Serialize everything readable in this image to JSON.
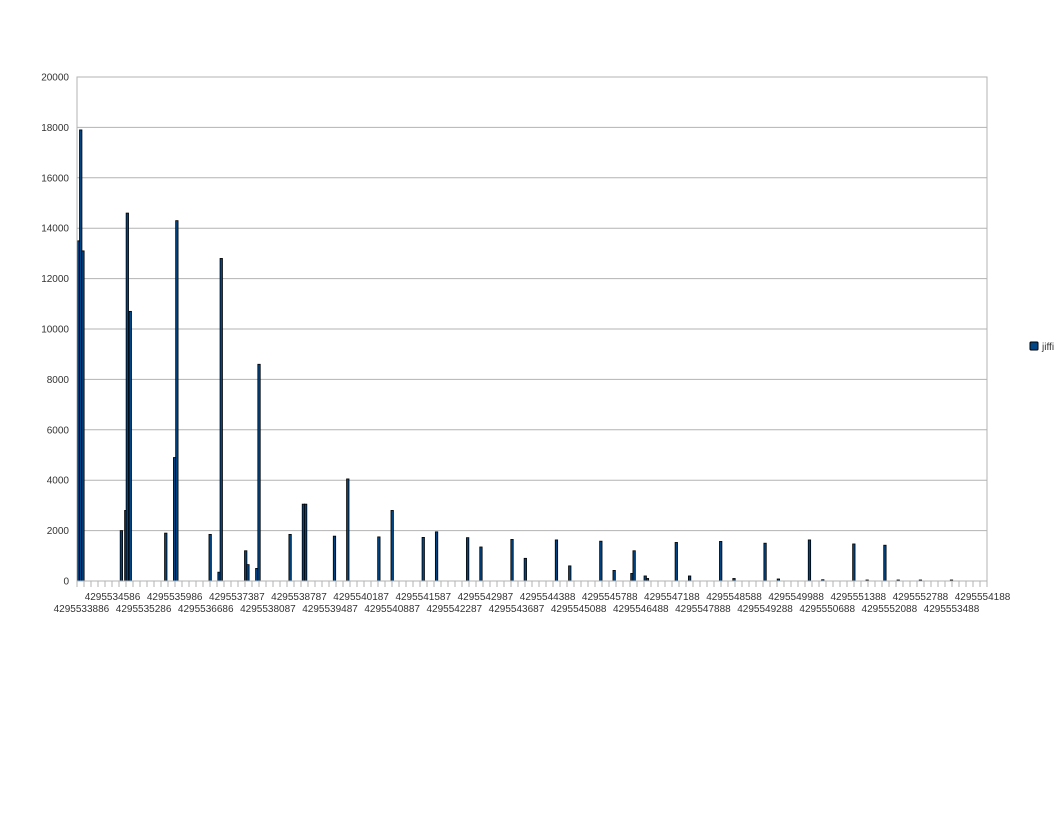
{
  "chart_data": {
    "type": "bar",
    "title": "",
    "xlabel": "",
    "ylabel": "",
    "ylim": [
      0,
      20000
    ],
    "yticks": [
      0,
      2000,
      4000,
      6000,
      8000,
      10000,
      12000,
      14000,
      16000,
      18000,
      20000
    ],
    "xlim": [
      4295533786,
      4295554288
    ],
    "grid": true,
    "legend": {
      "position": "right",
      "entries": [
        "jiffi"
      ]
    },
    "x_tick_labels": [
      "4295533886",
      "4295534586",
      "4295535286",
      "4295535986",
      "4295536686",
      "4295537387",
      "4295538087",
      "4295538787",
      "4295539487",
      "4295540187",
      "4295540887",
      "4295541587",
      "4295542287",
      "4295542987",
      "4295543687",
      "4295544388",
      "4295545088",
      "4295545788",
      "4295546488",
      "4295547188",
      "4295547888",
      "4295548588",
      "4295549288",
      "4295549988",
      "4295550688",
      "4295551388",
      "4295552088",
      "4295552788",
      "4295553488",
      "4295554188"
    ],
    "series": [
      {
        "name": "jiffi",
        "color": "#004586",
        "points": [
          [
            4295533830,
            13500
          ],
          [
            4295533870,
            17900
          ],
          [
            4295533920,
            13100
          ],
          [
            4295534786,
            2000
          ],
          [
            4295534886,
            2800
          ],
          [
            4295534920,
            14600
          ],
          [
            4295534986,
            10700
          ],
          [
            4295535786,
            1900
          ],
          [
            4295535986,
            4900
          ],
          [
            4295536036,
            14300
          ],
          [
            4295536786,
            1850
          ],
          [
            4295536986,
            350
          ],
          [
            4295537036,
            12800
          ],
          [
            4295537587,
            1200
          ],
          [
            4295537637,
            650
          ],
          [
            4295537837,
            500
          ],
          [
            4295537887,
            8600
          ],
          [
            4295538587,
            1850
          ],
          [
            4295538887,
            3050
          ],
          [
            4295538937,
            3050
          ],
          [
            4295539587,
            1780
          ],
          [
            4295539887,
            4050
          ],
          [
            4295540587,
            1750
          ],
          [
            4295540887,
            2800
          ],
          [
            4295541587,
            1730
          ],
          [
            4295541887,
            1950
          ],
          [
            4295542587,
            1720
          ],
          [
            4295542887,
            1350
          ],
          [
            4295543587,
            1650
          ],
          [
            4295543887,
            900
          ],
          [
            4295544588,
            1630
          ],
          [
            4295544888,
            600
          ],
          [
            4295545588,
            1580
          ],
          [
            4295545888,
            420
          ],
          [
            4295546288,
            300
          ],
          [
            4295546338,
            1200
          ],
          [
            4295546588,
            200
          ],
          [
            4295546638,
            100
          ],
          [
            4295547288,
            1530
          ],
          [
            4295547588,
            200
          ],
          [
            4295548288,
            1570
          ],
          [
            4295548588,
            100
          ],
          [
            4295549288,
            1500
          ],
          [
            4295549588,
            80
          ],
          [
            4295550288,
            1630
          ],
          [
            4295550588,
            50
          ],
          [
            4295551288,
            1470
          ],
          [
            4295551588,
            40
          ],
          [
            4295551988,
            1420
          ],
          [
            4295552288,
            40
          ],
          [
            4295552788,
            30
          ],
          [
            4295553488,
            20
          ]
        ]
      }
    ]
  }
}
